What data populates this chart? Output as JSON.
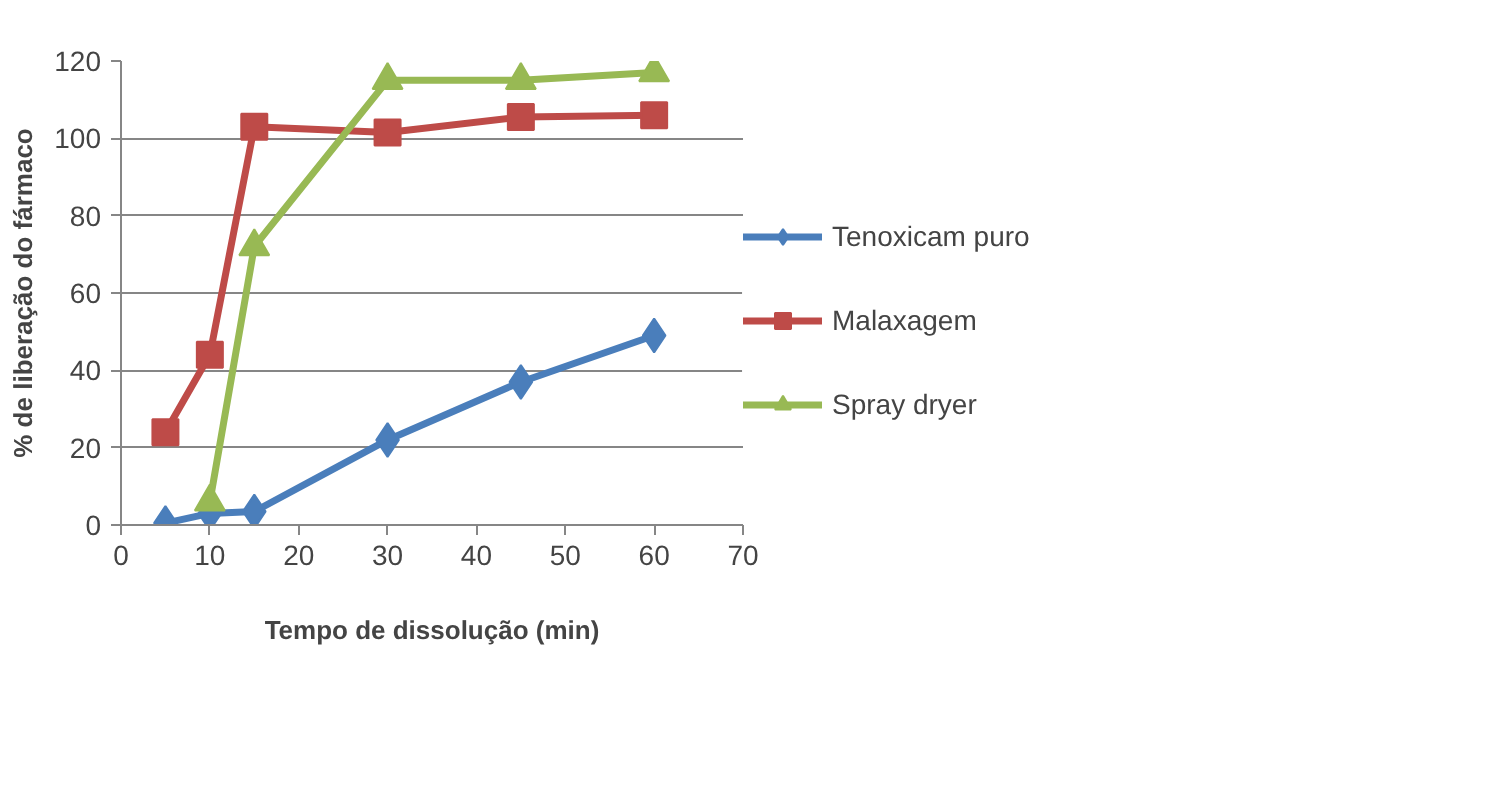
{
  "chart_data": {
    "type": "line",
    "xlabel": "Tempo de dissolução (min)",
    "ylabel": "% de liberação do fármaco",
    "xlim": [
      0,
      70
    ],
    "xticks": [
      0,
      10,
      20,
      30,
      40,
      50,
      60,
      70
    ],
    "ylim": [
      0,
      120
    ],
    "yticks": [
      0,
      20,
      40,
      60,
      80,
      100,
      120
    ],
    "grid": "y",
    "legend": "right",
    "line_style": "solid",
    "series": [
      {
        "name": "Tenoxicam puro",
        "color": "#4a7ebb",
        "marker": "diamond",
        "x": [
          5,
          10,
          15,
          30,
          45,
          60
        ],
        "values": [
          0.5,
          3,
          3.5,
          22,
          37,
          49
        ]
      },
      {
        "name": "Malaxagem",
        "color": "#be4b48",
        "marker": "square",
        "x": [
          5,
          10,
          15,
          30,
          45,
          60
        ],
        "values": [
          24,
          44,
          103,
          101.5,
          105.5,
          106
        ]
      },
      {
        "name": "Spray dryer",
        "color": "#98b954",
        "marker": "triangle",
        "x": [
          10,
          15,
          30,
          45,
          60
        ],
        "values": [
          6,
          72,
          115,
          115,
          117
        ]
      }
    ]
  }
}
